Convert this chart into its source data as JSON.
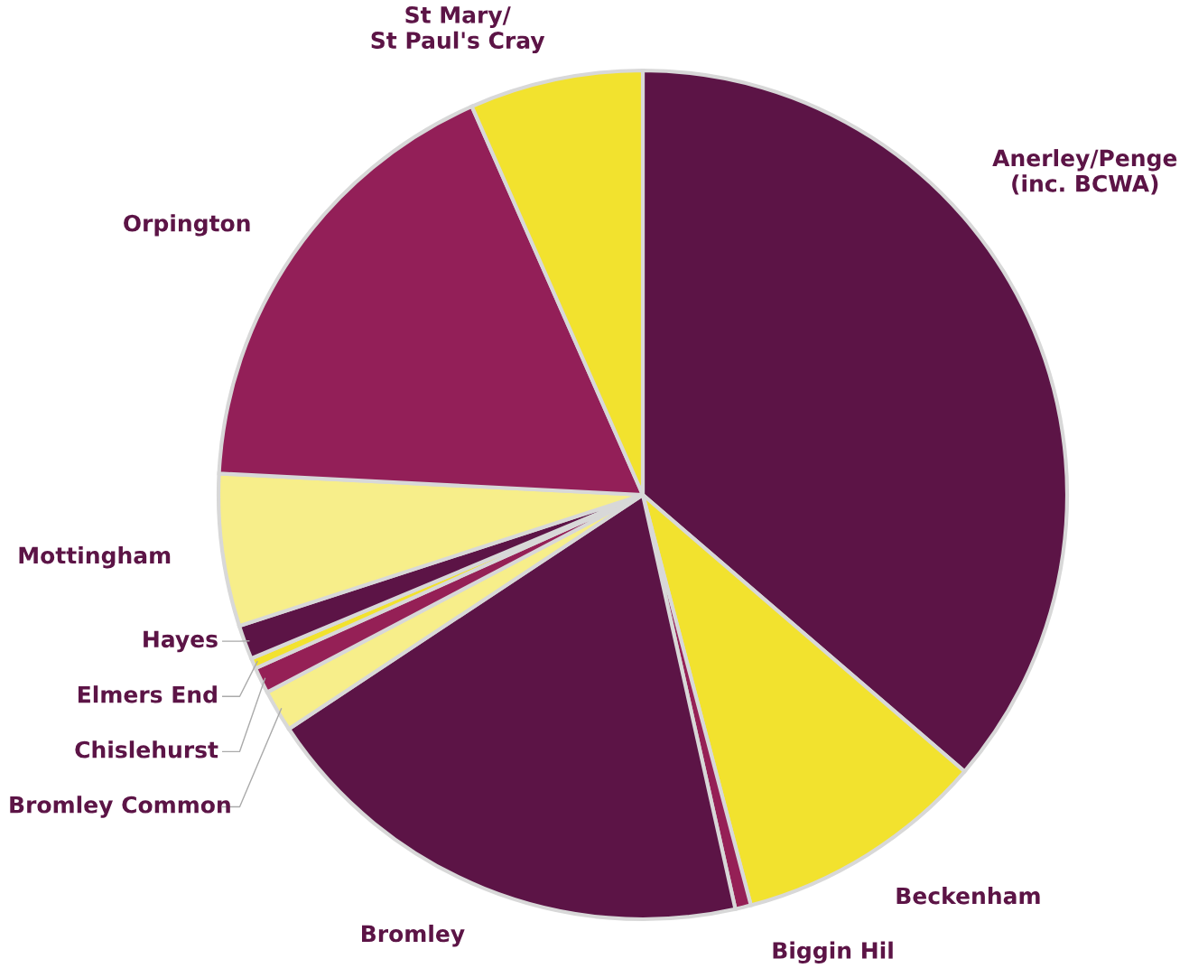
{
  "chart_data": {
    "type": "pie",
    "categories": [
      "Anerley/Penge\n(inc. BCWA)",
      "Beckenham",
      "Biggin Hil",
      "Bromley",
      "Bromley Common",
      "Chislehurst",
      "Elmers End",
      "Hayes",
      "Mottingham",
      "Orpington",
      "St Mary/\nSt Paul's Cray"
    ],
    "values": [
      36.3,
      9.6,
      0.6,
      19.2,
      1.6,
      1.0,
      0.4,
      1.3,
      5.8,
      17.6,
      6.6
    ],
    "colors": [
      "#5c1446",
      "#f2e22e",
      "#952056",
      "#5c1446",
      "#f7ee8a",
      "#952056",
      "#f2e22e",
      "#5c1446",
      "#f7ee8a",
      "#931f58",
      "#f2e22e"
    ]
  }
}
